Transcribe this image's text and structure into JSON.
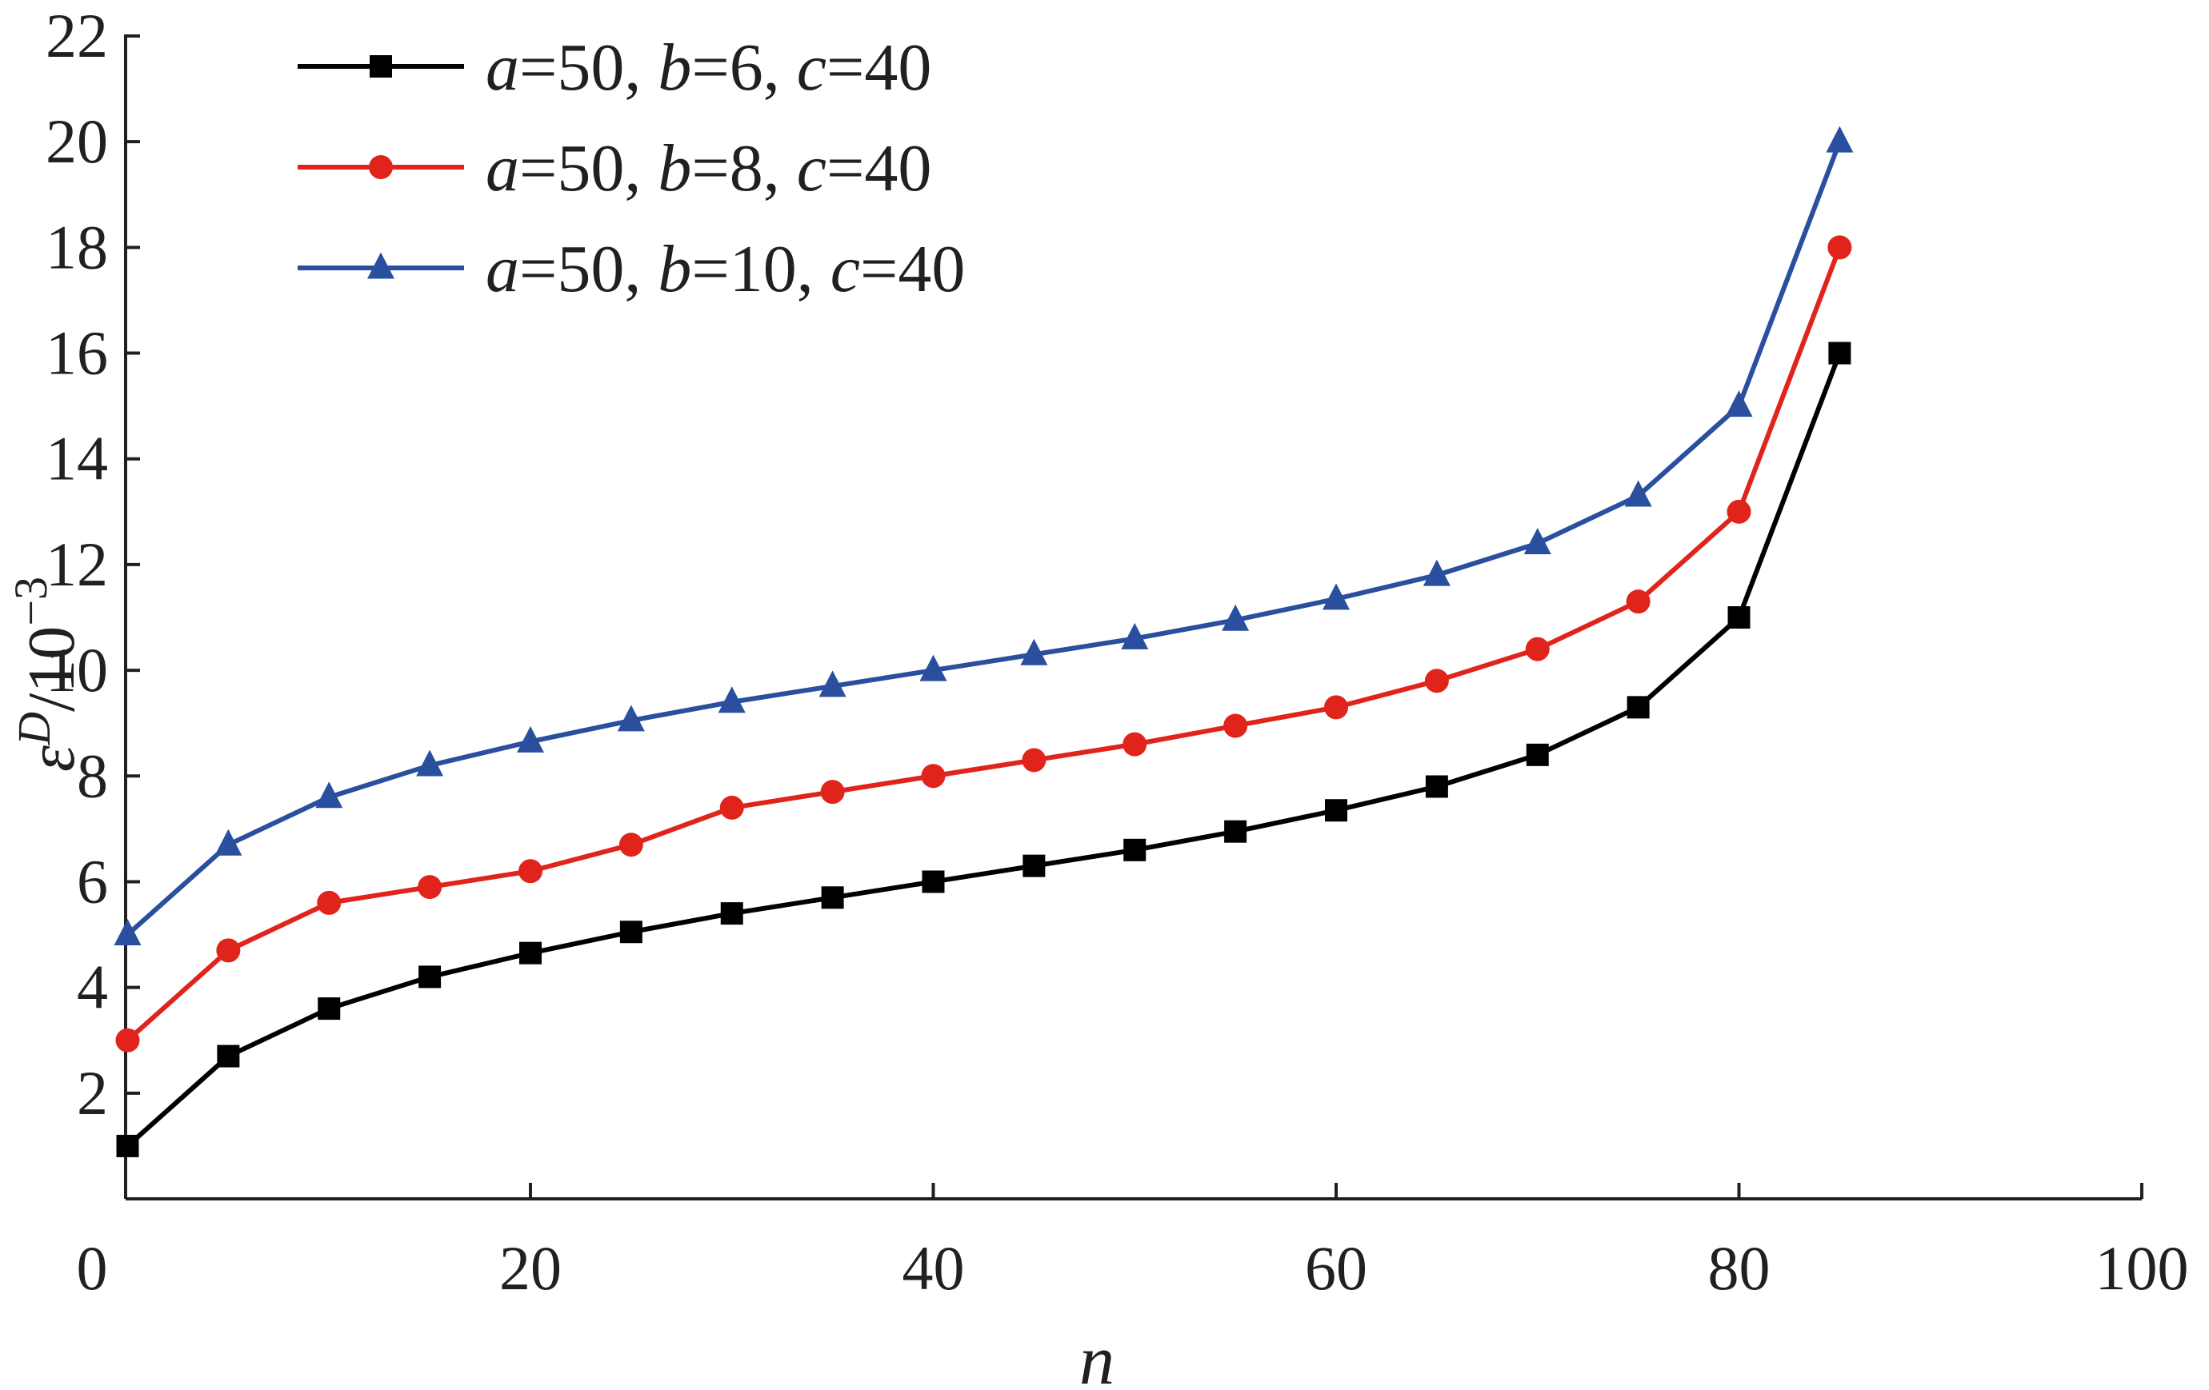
{
  "chart_data": {
    "type": "line",
    "xlabel": "n",
    "ylabel": {
      "base": "ε",
      "superscript": "D",
      "rest": "/10",
      "exponent": "−3"
    },
    "xlim": [
      0,
      100
    ],
    "ylim": [
      0,
      22
    ],
    "xticks": [
      0,
      20,
      40,
      60,
      80,
      100
    ],
    "yticks": [
      2,
      4,
      6,
      8,
      10,
      12,
      14,
      16,
      18,
      20,
      22
    ],
    "grid": false,
    "legend_position": "top-left",
    "series": [
      {
        "name": "a=50, b=6, c=40",
        "name_parts": [
          {
            "t": "a",
            "it": true
          },
          {
            "t": "=50, ",
            "it": false
          },
          {
            "t": "b",
            "it": true
          },
          {
            "t": "=6, ",
            "it": false
          },
          {
            "t": "c",
            "it": true
          },
          {
            "t": "=40",
            "it": false
          }
        ],
        "color": "#000000",
        "marker": "square",
        "x": [
          0,
          5,
          10,
          15,
          20,
          25,
          30,
          35,
          40,
          45,
          50,
          55,
          60,
          65,
          70,
          75,
          80,
          85
        ],
        "y": [
          1.0,
          2.7,
          3.6,
          4.2,
          4.65,
          5.05,
          5.4,
          5.7,
          6.0,
          6.3,
          6.6,
          6.95,
          7.35,
          7.8,
          8.4,
          9.3,
          11.0,
          16.0
        ]
      },
      {
        "name": "a=50, b=8, c=40",
        "name_parts": [
          {
            "t": "a",
            "it": true
          },
          {
            "t": "=50, ",
            "it": false
          },
          {
            "t": "b",
            "it": true
          },
          {
            "t": "=8, ",
            "it": false
          },
          {
            "t": "c",
            "it": true
          },
          {
            "t": "=40",
            "it": false
          }
        ],
        "color": "#e0241c",
        "marker": "circle",
        "x": [
          0,
          5,
          10,
          15,
          20,
          25,
          30,
          35,
          40,
          45,
          50,
          55,
          60,
          65,
          70,
          75,
          80,
          85
        ],
        "y": [
          3.0,
          4.7,
          5.6,
          5.9,
          6.2,
          6.7,
          7.4,
          7.7,
          8.0,
          8.3,
          8.6,
          8.95,
          9.3,
          9.8,
          10.4,
          11.3,
          13.0,
          18.0
        ]
      },
      {
        "name": "a=50, b=10, c=40",
        "name_parts": [
          {
            "t": "a",
            "it": true
          },
          {
            "t": "=50, ",
            "it": false
          },
          {
            "t": "b",
            "it": true
          },
          {
            "t": "=10, ",
            "it": false
          },
          {
            "t": "c",
            "it": true
          },
          {
            "t": "=40",
            "it": false
          }
        ],
        "color": "#2a4f9e",
        "marker": "triangle",
        "x": [
          0,
          5,
          10,
          15,
          20,
          25,
          30,
          35,
          40,
          45,
          50,
          55,
          60,
          65,
          70,
          75,
          80,
          85
        ],
        "y": [
          5.0,
          6.7,
          7.6,
          8.2,
          8.65,
          9.05,
          9.4,
          9.7,
          10.0,
          10.3,
          10.6,
          10.95,
          11.35,
          11.8,
          12.4,
          13.3,
          15.0,
          20.0
        ]
      }
    ]
  }
}
